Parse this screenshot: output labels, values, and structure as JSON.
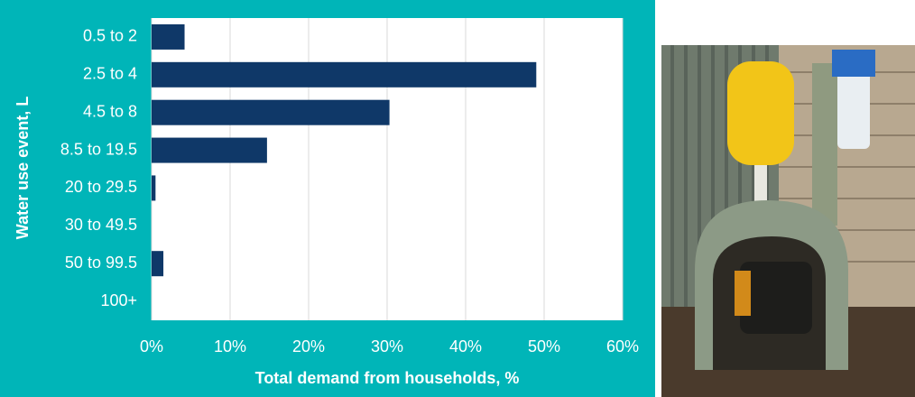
{
  "chart_data": {
    "type": "bar",
    "orientation": "horizontal",
    "x_label": "Total demand from households, %",
    "y_label": "Water use event, L",
    "categories": [
      "0.5 to 2",
      "2.5 to 4",
      "4.5 to 8",
      "8.5 to 19.5",
      "20 to 29.5",
      "30 to 49.5",
      "50 to 99.5",
      "100+"
    ],
    "values": [
      4.2,
      49,
      30.3,
      14.7,
      0.5,
      0,
      1.5,
      0
    ],
    "color": "#0f3868",
    "background": "#00b5b8",
    "xlim": [
      0,
      60
    ],
    "xticks": [
      {
        "value": 0,
        "label": "0%"
      },
      {
        "value": 10,
        "label": "10%"
      },
      {
        "value": 20,
        "label": "20%"
      },
      {
        "value": 30,
        "label": "30%"
      },
      {
        "value": 40,
        "label": "40%"
      },
      {
        "value": 50,
        "label": "50%"
      },
      {
        "value": 60,
        "label": "60%"
      }
    ],
    "grid": true
  }
}
